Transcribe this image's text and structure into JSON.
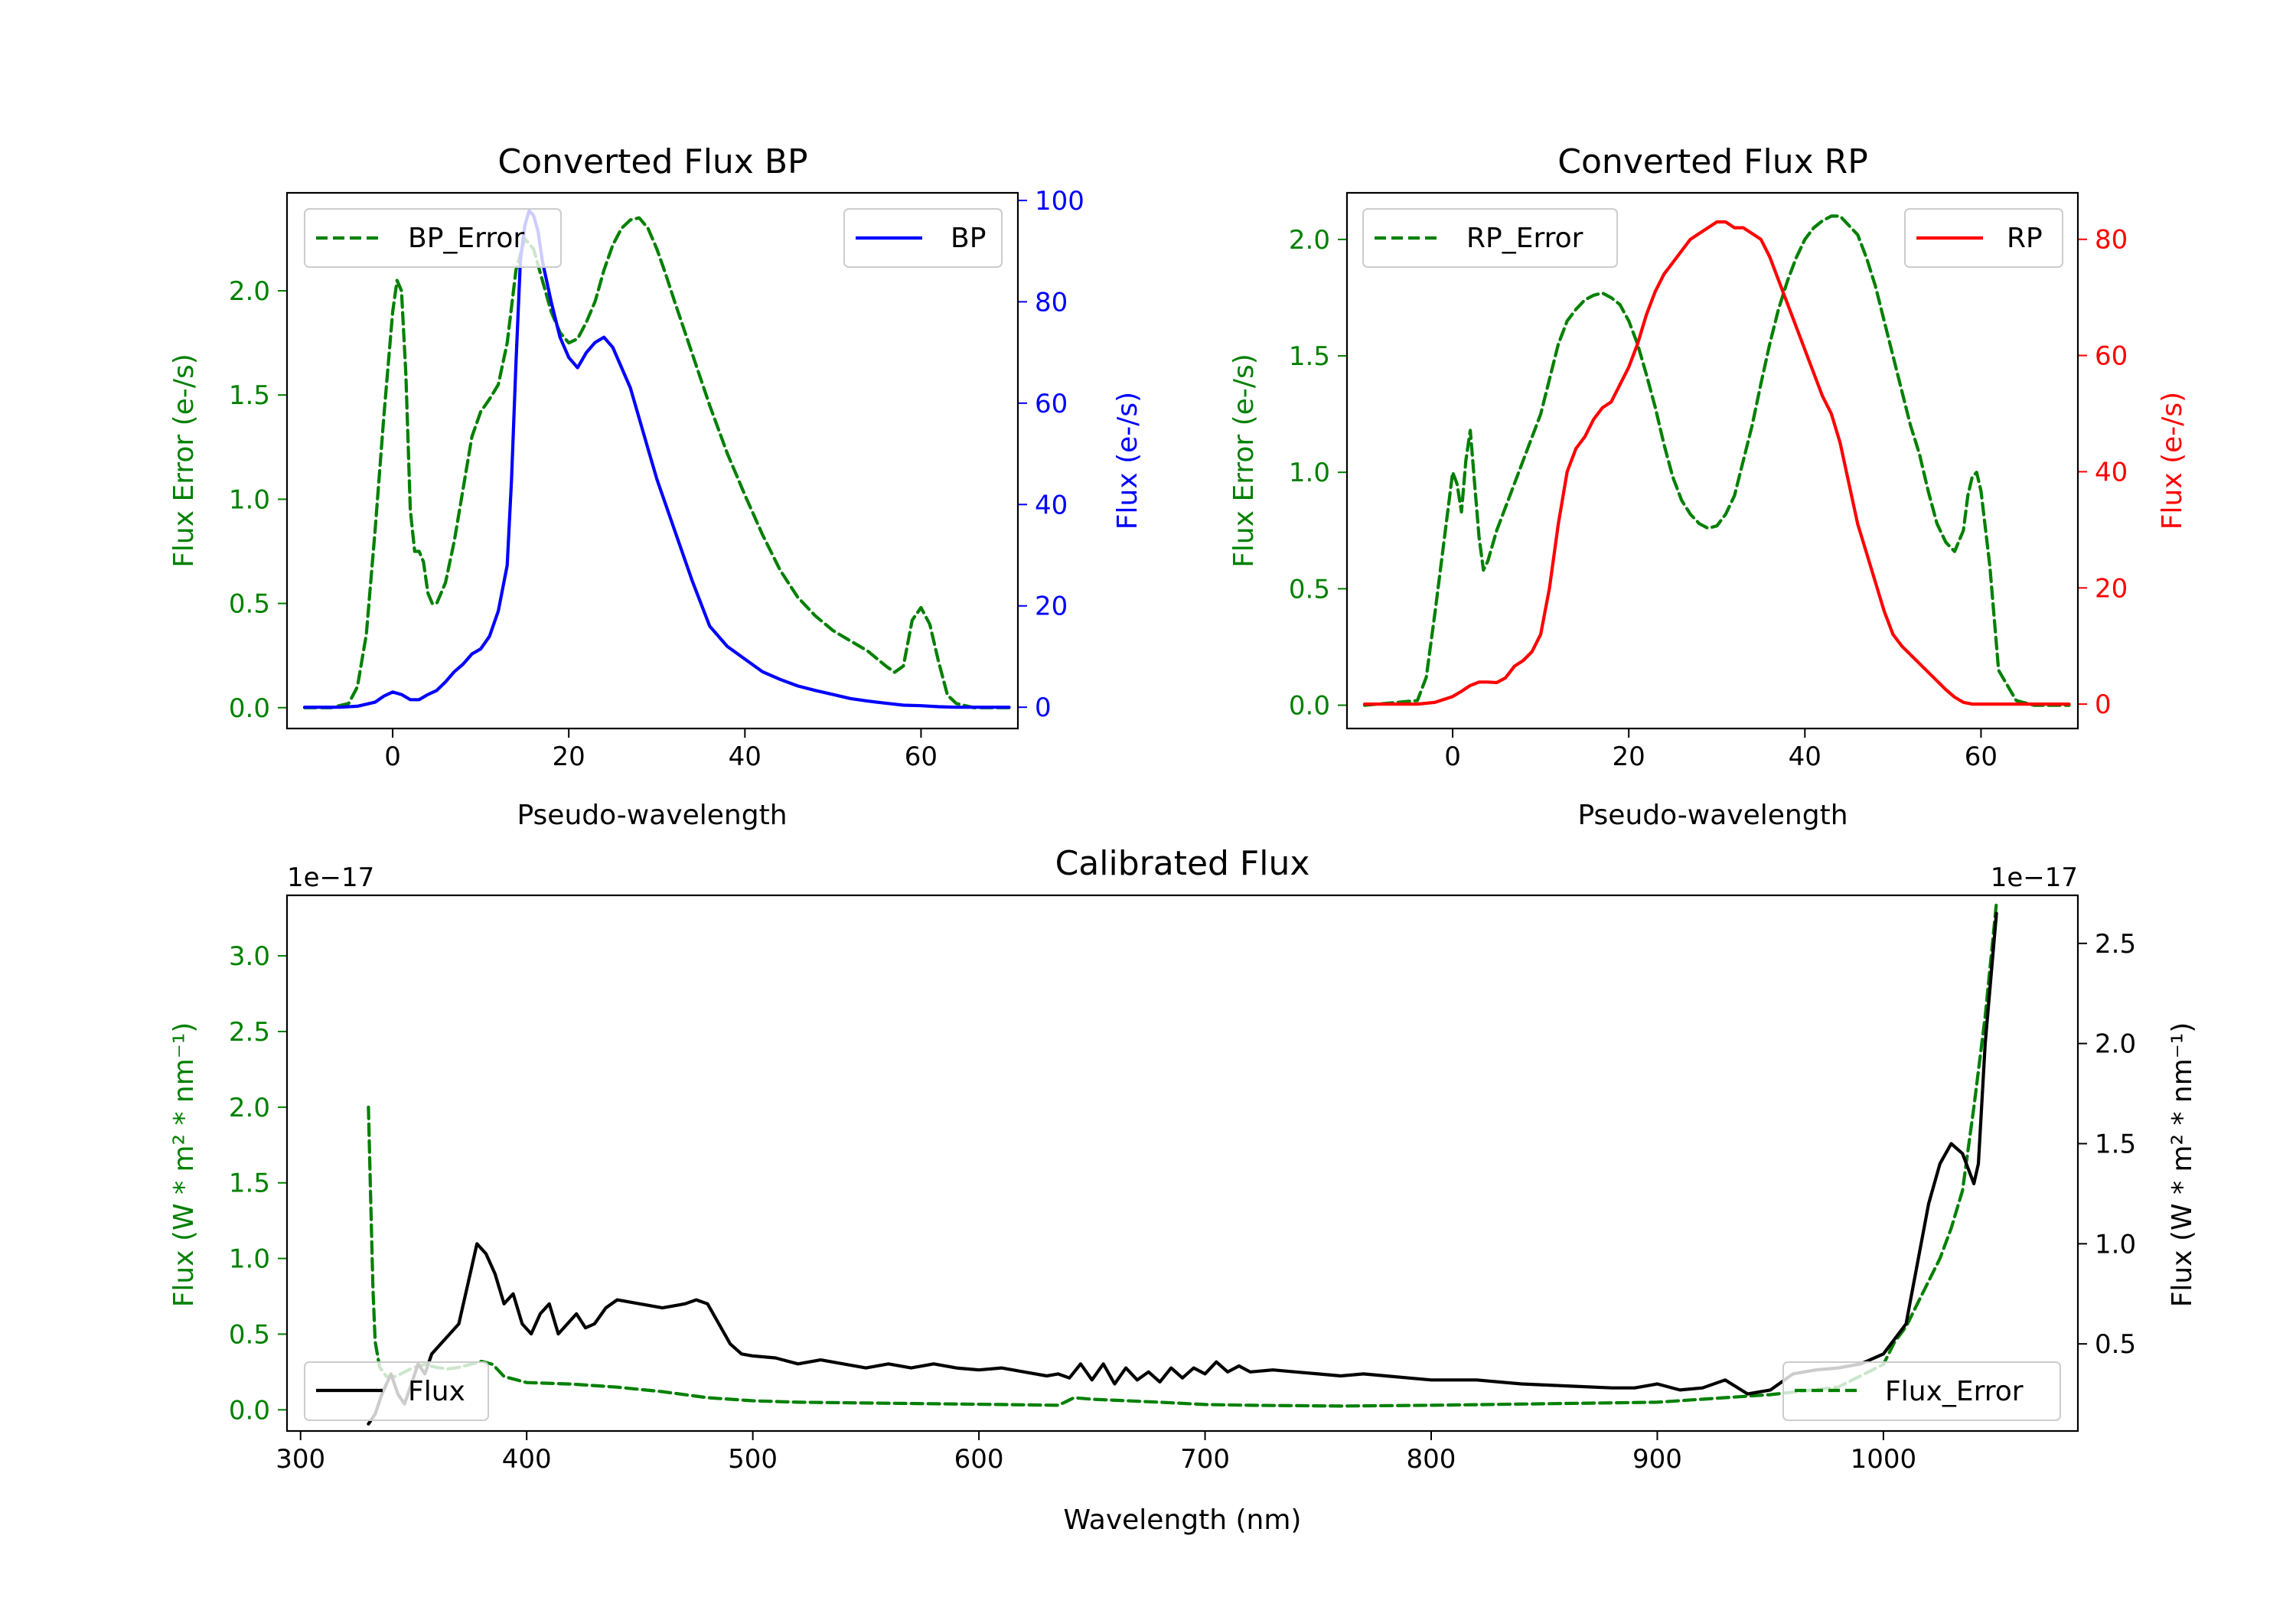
{
  "colors": {
    "green": "#008000",
    "blue": "#0000ff",
    "red": "#ff0000",
    "black": "#000000"
  },
  "chart_data": [
    {
      "id": "bp",
      "type": "line",
      "title": "Converted Flux BP",
      "xlabel": "Pseudo-wavelength",
      "ylabel_left": "Flux Error (e-/s)",
      "ylabel_right": "Flux (e-/s)",
      "xlim": [
        -12,
        71
      ],
      "ylim_left": [
        -0.1,
        2.47
      ],
      "ylim_right": [
        -4.2,
        101.5
      ],
      "x_ticks": [
        "0",
        "20",
        "40",
        "60"
      ],
      "y_ticks_left": [
        "0.0",
        "0.5",
        "1.0",
        "1.5",
        "2.0"
      ],
      "y_ticks_right": [
        "0",
        "20",
        "40",
        "60",
        "80",
        "100"
      ],
      "series": [
        {
          "name": "BP_Error",
          "axis": "left",
          "style": "dashed",
          "color": "green",
          "x": [
            -10,
            -7,
            -5,
            -4,
            -3,
            -2,
            -1,
            0,
            0.5,
            1,
            1.5,
            2,
            2.5,
            3,
            3.5,
            4,
            4.5,
            5,
            6,
            7,
            8,
            9,
            10,
            11,
            12,
            13,
            14,
            15,
            16,
            17,
            18,
            19,
            20,
            21,
            22,
            23,
            24,
            25,
            26,
            27,
            28,
            29,
            30,
            31,
            32,
            34,
            36,
            38,
            40,
            42,
            44,
            46,
            48,
            50,
            52,
            54,
            56,
            57,
            58,
            59,
            60,
            61,
            62,
            63,
            64,
            66,
            68,
            70
          ],
          "y": [
            0,
            0,
            0.02,
            0.1,
            0.35,
            0.85,
            1.4,
            1.9,
            2.05,
            2.0,
            1.6,
            0.95,
            0.75,
            0.75,
            0.7,
            0.55,
            0.5,
            0.5,
            0.6,
            0.8,
            1.05,
            1.3,
            1.42,
            1.48,
            1.55,
            1.75,
            2.1,
            2.25,
            2.2,
            2.05,
            1.9,
            1.8,
            1.75,
            1.77,
            1.85,
            1.95,
            2.1,
            2.22,
            2.3,
            2.34,
            2.35,
            2.3,
            2.2,
            2.08,
            1.95,
            1.7,
            1.45,
            1.22,
            1.02,
            0.83,
            0.66,
            0.53,
            0.44,
            0.37,
            0.32,
            0.27,
            0.2,
            0.17,
            0.2,
            0.42,
            0.48,
            0.4,
            0.22,
            0.06,
            0.02,
            0,
            0,
            0
          ]
        },
        {
          "name": "BP",
          "axis": "right",
          "style": "solid",
          "color": "blue",
          "x": [
            -10,
            -6,
            -4,
            -2,
            -1,
            0,
            1,
            2,
            3,
            4,
            5,
            6,
            7,
            8,
            9,
            10,
            11,
            12,
            13,
            13.5,
            14,
            14.5,
            15,
            15.5,
            16,
            16.5,
            17,
            18,
            19,
            20,
            21,
            22,
            23,
            24,
            25,
            26,
            27,
            28,
            29,
            30,
            31,
            32,
            34,
            36,
            38,
            40,
            42,
            44,
            46,
            48,
            50,
            52,
            54,
            56,
            58,
            60,
            62,
            64,
            66,
            68,
            70
          ],
          "y": [
            0,
            0,
            0.2,
            1,
            2.2,
            3,
            2.5,
            1.5,
            1.5,
            2.5,
            3.3,
            5,
            7,
            8.5,
            10.5,
            11.5,
            14,
            19,
            28,
            45,
            68,
            88,
            95,
            98,
            97,
            94,
            88,
            80,
            73,
            69,
            67,
            70,
            72,
            73,
            71,
            67,
            63,
            57,
            51,
            45,
            40,
            35,
            25,
            16,
            12,
            9.5,
            7,
            5.5,
            4.2,
            3.3,
            2.5,
            1.7,
            1.2,
            0.8,
            0.4,
            0.3,
            0.1,
            0,
            0,
            0,
            0
          ]
        }
      ],
      "legend": [
        {
          "label": "BP_Error",
          "position": "upper-left"
        },
        {
          "label": "BP",
          "position": "upper-right"
        }
      ]
    },
    {
      "id": "rp",
      "type": "line",
      "title": "Converted Flux RP",
      "xlabel": "Pseudo-wavelength",
      "ylabel_left": "Flux Error (e-/s)",
      "ylabel_right": "Flux (e-/s)",
      "xlim": [
        -12,
        71
      ],
      "ylim_left": [
        -0.1,
        2.2
      ],
      "ylim_right": [
        -4.2,
        88
      ],
      "x_ticks": [
        "0",
        "20",
        "40",
        "60"
      ],
      "y_ticks_left": [
        "0.0",
        "0.5",
        "1.0",
        "1.5",
        "2.0"
      ],
      "y_ticks_right": [
        "0",
        "20",
        "40",
        "60",
        "80"
      ],
      "series": [
        {
          "name": "RP_Error",
          "axis": "left",
          "style": "dashed",
          "color": "green",
          "x": [
            -10,
            -4,
            -3,
            -2,
            -1,
            0,
            0.5,
            1,
            1.5,
            2,
            2.5,
            3,
            3.5,
            4,
            5,
            6,
            7,
            8,
            9,
            10,
            11,
            12,
            13,
            14,
            15,
            16,
            17,
            18,
            19,
            20,
            21,
            22,
            23,
            24,
            25,
            26,
            27,
            28,
            29,
            30,
            31,
            32,
            33,
            34,
            35,
            36,
            37,
            38,
            39,
            40,
            41,
            42,
            43,
            44,
            45,
            46,
            47,
            48,
            49,
            50,
            51,
            52,
            53,
            54,
            55,
            56,
            57,
            58,
            58.5,
            59,
            59.5,
            60,
            61,
            62,
            64,
            66,
            68,
            70
          ],
          "y": [
            0,
            0.02,
            0.12,
            0.4,
            0.7,
            1.0,
            0.95,
            0.83,
            1.05,
            1.18,
            0.95,
            0.72,
            0.58,
            0.62,
            0.75,
            0.85,
            0.95,
            1.05,
            1.15,
            1.25,
            1.4,
            1.55,
            1.65,
            1.7,
            1.74,
            1.76,
            1.77,
            1.75,
            1.72,
            1.65,
            1.55,
            1.42,
            1.28,
            1.12,
            0.98,
            0.88,
            0.82,
            0.78,
            0.76,
            0.77,
            0.82,
            0.9,
            1.05,
            1.2,
            1.38,
            1.55,
            1.7,
            1.82,
            1.92,
            2.0,
            2.05,
            2.08,
            2.1,
            2.1,
            2.06,
            2.02,
            1.92,
            1.8,
            1.65,
            1.5,
            1.35,
            1.2,
            1.08,
            0.92,
            0.78,
            0.7,
            0.66,
            0.75,
            0.9,
            0.98,
            1.0,
            0.92,
            0.6,
            0.15,
            0.02,
            0,
            0,
            0
          ]
        },
        {
          "name": "RP",
          "axis": "right",
          "style": "solid",
          "color": "red",
          "x": [
            -10,
            -4,
            -2,
            0,
            1,
            2,
            3,
            4,
            5,
            6,
            7,
            8,
            9,
            10,
            11,
            12,
            13,
            14,
            15,
            16,
            17,
            18,
            19,
            20,
            21,
            22,
            23,
            24,
            25,
            26,
            27,
            28,
            29,
            30,
            31,
            32,
            33,
            34,
            35,
            36,
            37,
            38,
            39,
            40,
            41,
            42,
            43,
            44,
            45,
            46,
            47,
            48,
            49,
            50,
            51,
            52,
            53,
            54,
            55,
            56,
            57,
            58,
            59,
            60,
            62,
            64,
            66,
            68,
            70
          ],
          "y": [
            0,
            0,
            0.3,
            1.3,
            2.2,
            3.2,
            3.8,
            3.8,
            3.7,
            4.5,
            6.5,
            7.5,
            9,
            12,
            20,
            31,
            40,
            44,
            46,
            49,
            51,
            52,
            55,
            58,
            62,
            67,
            71,
            74,
            76,
            78,
            80,
            81,
            82,
            83,
            83,
            82,
            82,
            81,
            80,
            77,
            73,
            69,
            65,
            61,
            57,
            53,
            50,
            45,
            38,
            31,
            26,
            21,
            16,
            12,
            10,
            8.5,
            7,
            5.5,
            4,
            2.5,
            1.2,
            0.3,
            0,
            0,
            0,
            0,
            0,
            0,
            0
          ]
        }
      ],
      "legend": [
        {
          "label": "RP_Error",
          "position": "upper-left"
        },
        {
          "label": "RP",
          "position": "upper-right"
        }
      ]
    },
    {
      "id": "cal",
      "type": "line",
      "title": "Calibrated Flux",
      "xlabel": "Wavelength (nm)",
      "ylabel_left": "Flux (W * m² * nm⁻¹)",
      "ylabel_right": "Flux (W * m² * nm⁻¹)",
      "offset_left": "1e−17",
      "offset_right": "1e−17",
      "xlim": [
        294,
        1086
      ],
      "ylim_left": [
        -0.14,
        3.4
      ],
      "ylim_right": [
        0.065,
        2.74
      ],
      "x_ticks": [
        "300",
        "400",
        "500",
        "600",
        "700",
        "800",
        "900",
        "1000"
      ],
      "y_ticks_left": [
        "0.0",
        "0.5",
        "1.0",
        "1.5",
        "2.0",
        "2.5",
        "3.0"
      ],
      "y_ticks_right": [
        "0.5",
        "1.0",
        "1.5",
        "2.0",
        "2.5"
      ],
      "series": [
        {
          "name": "Flux_Error",
          "axis": "left",
          "style": "dashed",
          "color": "green",
          "x": [
            330,
            331,
            332,
            333,
            335,
            338,
            342,
            346,
            350,
            355,
            360,
            365,
            370,
            375,
            380,
            385,
            390,
            400,
            420,
            440,
            460,
            480,
            500,
            520,
            550,
            580,
            610,
            635,
            638,
            642,
            650,
            680,
            700,
            720,
            760,
            800,
            850,
            900,
            950,
            980,
            1000,
            1005,
            1010,
            1015,
            1020,
            1025,
            1030,
            1035,
            1040,
            1045,
            1050
          ],
          "y": [
            2.0,
            1.4,
            0.8,
            0.45,
            0.28,
            0.22,
            0.22,
            0.25,
            0.28,
            0.3,
            0.28,
            0.27,
            0.28,
            0.3,
            0.32,
            0.3,
            0.22,
            0.18,
            0.17,
            0.15,
            0.12,
            0.08,
            0.06,
            0.05,
            0.045,
            0.04,
            0.035,
            0.03,
            0.05,
            0.08,
            0.07,
            0.05,
            0.035,
            0.03,
            0.025,
            0.03,
            0.04,
            0.05,
            0.1,
            0.15,
            0.3,
            0.45,
            0.55,
            0.7,
            0.85,
            1.0,
            1.2,
            1.45,
            2.0,
            2.6,
            3.35
          ]
        },
        {
          "name": "Flux",
          "axis": "right",
          "style": "solid",
          "color": "black",
          "x": [
            330,
            333,
            336,
            340,
            343,
            346,
            349,
            352,
            355,
            358,
            362,
            366,
            370,
            374,
            378,
            382,
            386,
            390,
            394,
            398,
            402,
            406,
            410,
            414,
            418,
            422,
            426,
            430,
            435,
            440,
            450,
            460,
            470,
            475,
            480,
            485,
            490,
            495,
            500,
            510,
            520,
            530,
            540,
            550,
            560,
            570,
            580,
            590,
            600,
            610,
            620,
            630,
            635,
            640,
            645,
            650,
            655,
            660,
            665,
            670,
            675,
            680,
            685,
            690,
            695,
            700,
            705,
            710,
            715,
            720,
            730,
            740,
            750,
            760,
            770,
            780,
            790,
            800,
            820,
            840,
            860,
            880,
            890,
            900,
            910,
            920,
            930,
            940,
            950,
            960,
            970,
            980,
            990,
            1000,
            1010,
            1020,
            1025,
            1030,
            1035,
            1040,
            1042,
            1045,
            1050
          ],
          "y": [
            0.1,
            0.15,
            0.25,
            0.35,
            0.25,
            0.2,
            0.3,
            0.4,
            0.35,
            0.45,
            0.5,
            0.55,
            0.6,
            0.8,
            1.0,
            0.95,
            0.85,
            0.7,
            0.75,
            0.6,
            0.55,
            0.65,
            0.7,
            0.55,
            0.6,
            0.65,
            0.58,
            0.6,
            0.68,
            0.72,
            0.7,
            0.68,
            0.7,
            0.72,
            0.7,
            0.6,
            0.5,
            0.45,
            0.44,
            0.43,
            0.4,
            0.42,
            0.4,
            0.38,
            0.4,
            0.38,
            0.4,
            0.38,
            0.37,
            0.38,
            0.36,
            0.34,
            0.35,
            0.33,
            0.4,
            0.32,
            0.4,
            0.3,
            0.38,
            0.32,
            0.36,
            0.31,
            0.38,
            0.33,
            0.38,
            0.35,
            0.41,
            0.36,
            0.39,
            0.36,
            0.37,
            0.36,
            0.35,
            0.34,
            0.35,
            0.34,
            0.33,
            0.32,
            0.32,
            0.3,
            0.29,
            0.28,
            0.28,
            0.3,
            0.27,
            0.28,
            0.32,
            0.25,
            0.27,
            0.35,
            0.37,
            0.38,
            0.4,
            0.45,
            0.6,
            1.2,
            1.4,
            1.5,
            1.45,
            1.3,
            1.4,
            2.0,
            2.65
          ]
        }
      ],
      "legend": [
        {
          "label": "Flux",
          "position": "lower-left"
        },
        {
          "label": "Flux_Error",
          "position": "lower-right"
        }
      ]
    }
  ]
}
